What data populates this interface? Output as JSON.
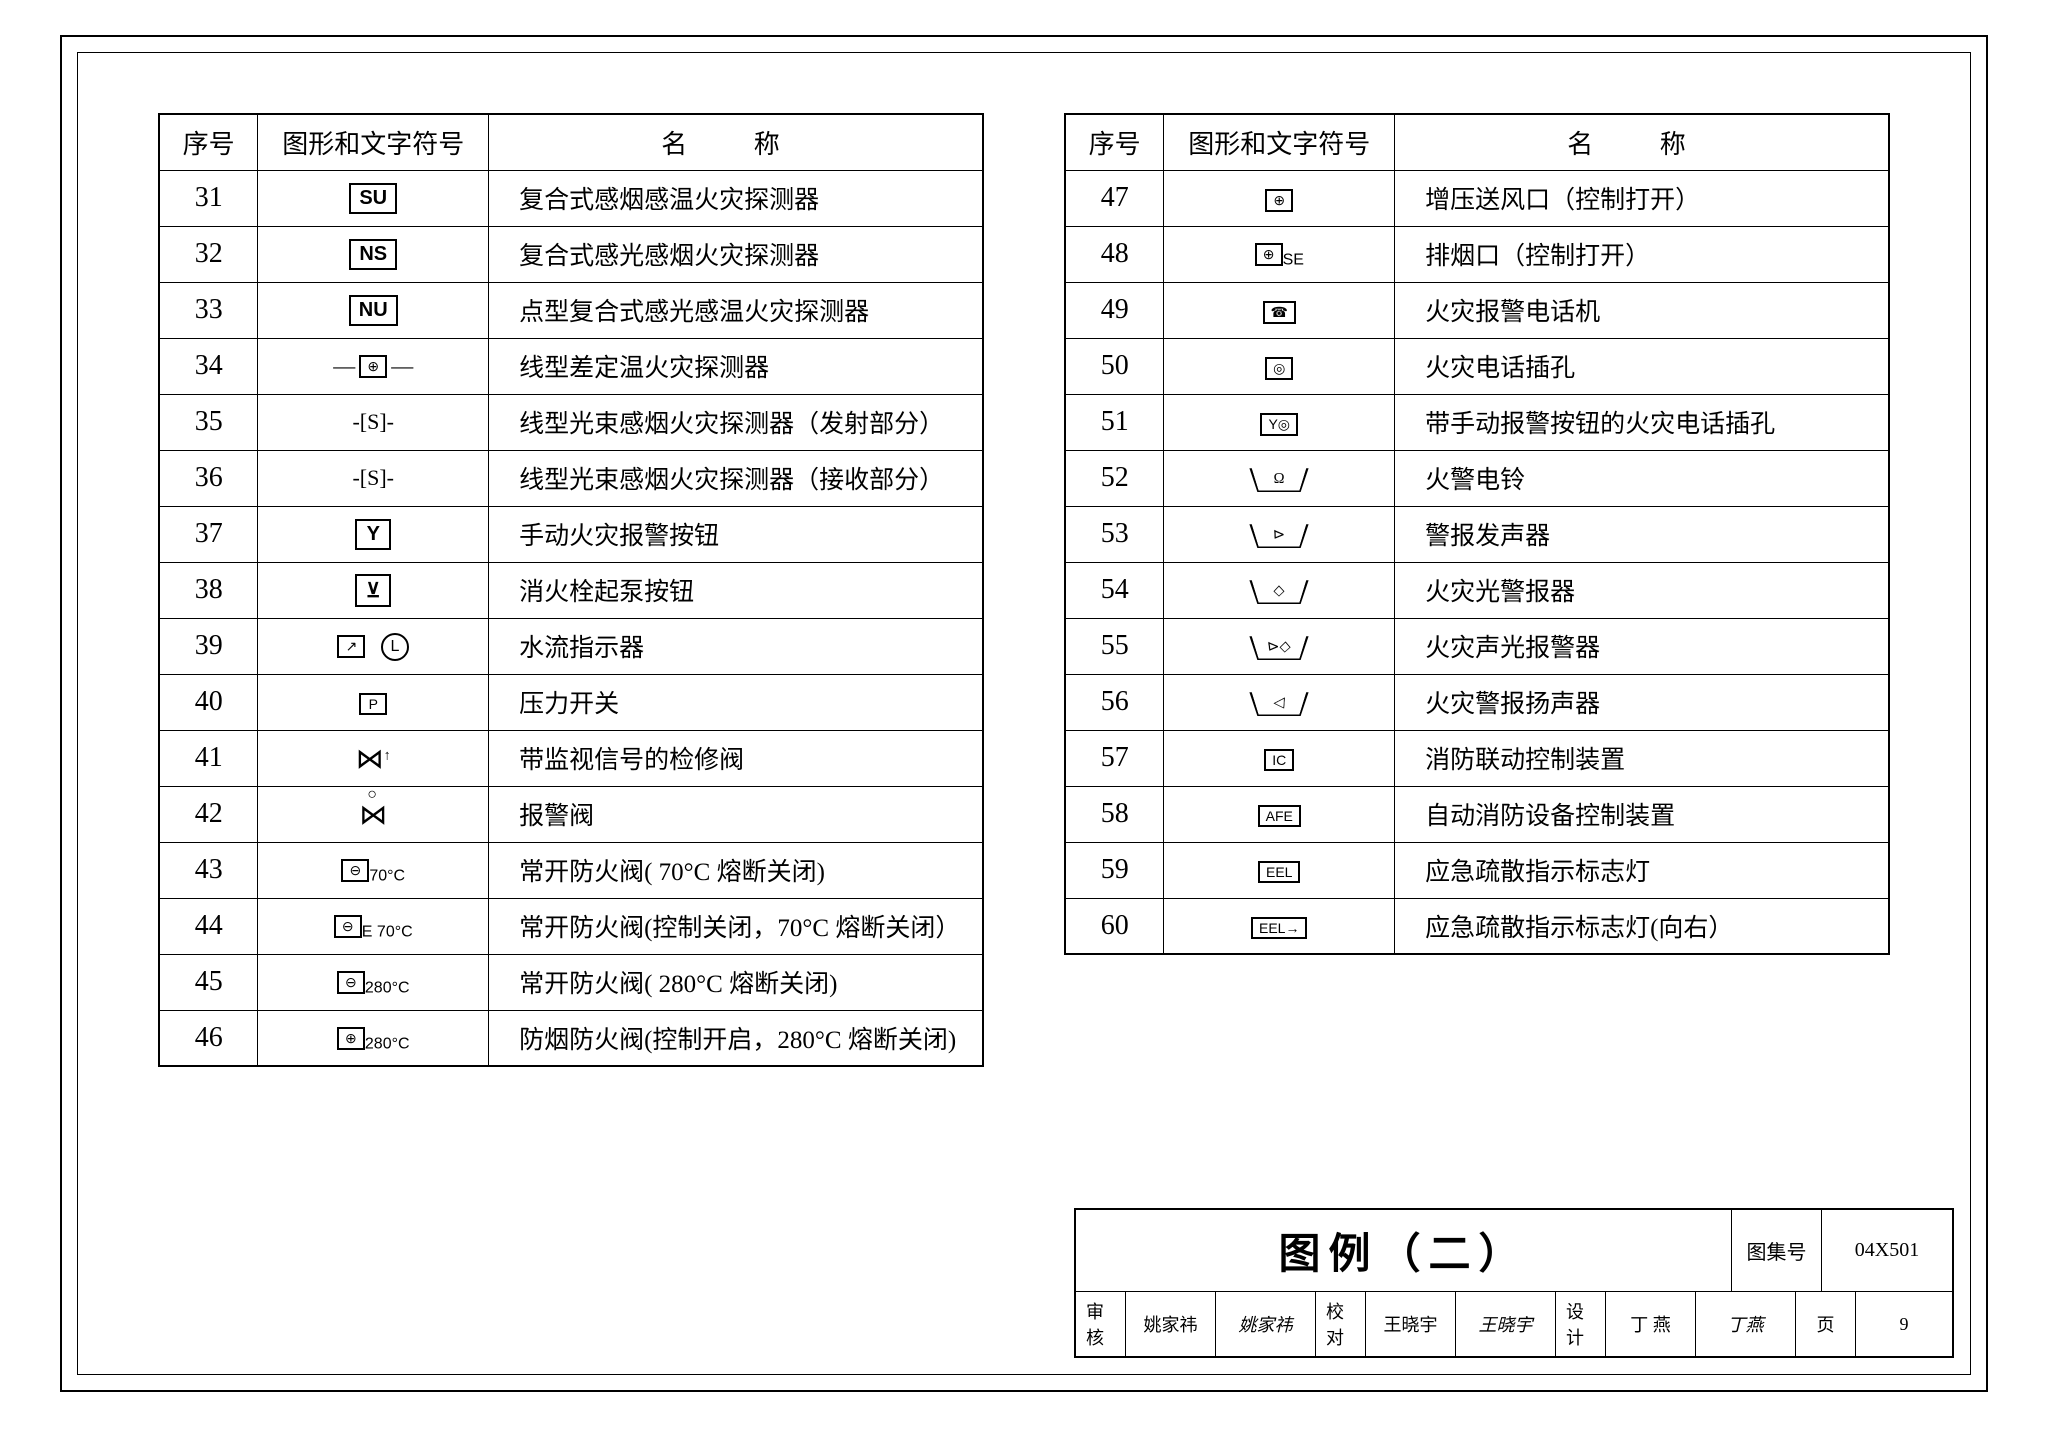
{
  "headers": {
    "num": "序号",
    "sym": "图形和文字符号",
    "name": "名 称"
  },
  "leftRows": [
    {
      "num": "31",
      "sym": "SU",
      "name": "复合式感烟感温火灾探测器",
      "symType": "box"
    },
    {
      "num": "32",
      "sym": "NS",
      "name": "复合式感光感烟火灾探测器",
      "symType": "box"
    },
    {
      "num": "33",
      "sym": "NU",
      "name": "点型复合式感光感温火灾探测器",
      "symType": "box"
    },
    {
      "num": "34",
      "sym": "⊕",
      "name": "线型差定温火灾探测器",
      "symType": "line-box"
    },
    {
      "num": "35",
      "sym": "-[S]-",
      "name": "线型光束感烟火灾探测器（发射部分）",
      "symType": "plain"
    },
    {
      "num": "36",
      "sym": "-[S]-",
      "name": "线型光束感烟火灾探测器（接收部分）",
      "symType": "plain"
    },
    {
      "num": "37",
      "sym": "Y",
      "name": "手动火灾报警按钮",
      "symType": "box"
    },
    {
      "num": "38",
      "sym": "⊻",
      "name": "消火栓起泵按钮",
      "symType": "box"
    },
    {
      "num": "39",
      "sym": "↗ ⓁⒿ",
      "name": "水流指示器",
      "symType": "dual"
    },
    {
      "num": "40",
      "sym": "P",
      "name": "压力开关",
      "symType": "small-box"
    },
    {
      "num": "41",
      "sym": "⋈↑",
      "name": "带监视信号的检修阀",
      "symType": "valve"
    },
    {
      "num": "42",
      "sym": "⋈○",
      "name": "报警阀",
      "symType": "valve2"
    },
    {
      "num": "43",
      "sym": "⊖",
      "sub": "70°C",
      "name": "常开防火阀( 70°C 熔断关闭)",
      "symType": "box-sub"
    },
    {
      "num": "44",
      "sym": "⊖",
      "sub": "E 70°C",
      "name": "常开防火阀(控制关闭，70°C 熔断关闭）",
      "symType": "box-sub"
    },
    {
      "num": "45",
      "sym": "⊖",
      "sub": "280°C",
      "name": "常开防火阀( 280°C 熔断关闭)",
      "symType": "box-sub"
    },
    {
      "num": "46",
      "sym": "⊕",
      "sub": "280°C",
      "name": "防烟防火阀(控制开启，280°C 熔断关闭)",
      "symType": "box-sub"
    }
  ],
  "rightRows": [
    {
      "num": "47",
      "sym": "⊕",
      "name": "增压送风口（控制打开）",
      "symType": "small-box"
    },
    {
      "num": "48",
      "sym": "⊕",
      "sub": "SE",
      "name": "排烟口（控制打开）",
      "symType": "box-sub"
    },
    {
      "num": "49",
      "sym": "☎",
      "name": "火灾报警电话机",
      "symType": "small-box"
    },
    {
      "num": "50",
      "sym": "◎",
      "name": "火灾电话插孔",
      "symType": "small-box"
    },
    {
      "num": "51",
      "sym": "Y◎",
      "name": "带手动报警按钮的火灾电话插孔",
      "symType": "small-box"
    },
    {
      "num": "52",
      "sym": "Ω",
      "name": "火警电铃",
      "symType": "trap"
    },
    {
      "num": "53",
      "sym": "⊳",
      "name": "警报发声器",
      "symType": "trap"
    },
    {
      "num": "54",
      "sym": "◇",
      "name": "火灾光警报器",
      "symType": "trap"
    },
    {
      "num": "55",
      "sym": "⊳◇",
      "name": "火灾声光报警器",
      "symType": "trap"
    },
    {
      "num": "56",
      "sym": "◁",
      "name": "火灾警报扬声器",
      "symType": "trap"
    },
    {
      "num": "57",
      "sym": "IC",
      "name": "消防联动控制装置",
      "symType": "small-box"
    },
    {
      "num": "58",
      "sym": "AFE",
      "name": "自动消防设备控制装置",
      "symType": "small-box"
    },
    {
      "num": "59",
      "sym": "EEL",
      "name": "应急疏散指示标志灯",
      "symType": "small-box"
    },
    {
      "num": "60",
      "sym": "EEL→",
      "name": "应急疏散指示标志灯(向右）",
      "symType": "small-box"
    }
  ],
  "titleBlock": {
    "title": "图例（二）",
    "setLabel": "图集号",
    "setNum": "04X501",
    "pageLabel": "页",
    "pageNum": "9",
    "reviewLabel": "审核",
    "reviewName": "姚家祎",
    "reviewSig": "姚家祎",
    "checkLabel": "校对",
    "checkName": "王晓宇",
    "checkSig": "王晓宇",
    "designLabel": "设计",
    "designName": "丁 燕",
    "designSig": "丁燕"
  }
}
